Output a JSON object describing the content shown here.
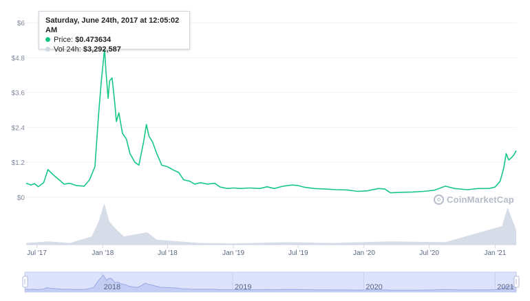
{
  "chart_data": {
    "type": "line",
    "title": "",
    "xlabel": "",
    "ylabel": "",
    "xlim": [
      "2017-06-01",
      "2021-03-01"
    ],
    "ylim": [
      0,
      6
    ],
    "y_ticks": [
      {
        "value": 0,
        "label": "$0"
      },
      {
        "value": 1.2,
        "label": "$1.2"
      },
      {
        "value": 2.4,
        "label": "$2.4"
      },
      {
        "value": 3.6,
        "label": "$3.6"
      },
      {
        "value": 4.8,
        "label": "$4.8"
      },
      {
        "value": 6,
        "label": "$6"
      }
    ],
    "x_ticks": [
      {
        "date": "2017-07-01",
        "label": "Jul '17"
      },
      {
        "date": "2018-01-01",
        "label": "Jan '18"
      },
      {
        "date": "2018-07-01",
        "label": "Jul '18"
      },
      {
        "date": "2019-01-01",
        "label": "Jan '19"
      },
      {
        "date": "2019-07-01",
        "label": "Jul '19"
      },
      {
        "date": "2020-01-01",
        "label": "Jan '20"
      },
      {
        "date": "2020-07-01",
        "label": "Jul '20"
      },
      {
        "date": "2021-01-01",
        "label": "Jan '21"
      }
    ],
    "navigator_ticks": [
      {
        "date": "2018-01-01",
        "label": "2018"
      },
      {
        "date": "2019-01-01",
        "label": "2019"
      },
      {
        "date": "2020-01-01",
        "label": "2020"
      },
      {
        "date": "2021-01-01",
        "label": "2021"
      }
    ],
    "grid": true,
    "series": [
      {
        "color": "#16c784",
        "points": [
          [
            "2017-06-01",
            0.48
          ],
          [
            "2017-06-15",
            0.42
          ],
          [
            "2017-06-24",
            0.47
          ],
          [
            "2017-07-05",
            0.36
          ],
          [
            "2017-07-20",
            0.5
          ],
          [
            "2017-08-01",
            0.95
          ],
          [
            "2017-08-15",
            0.78
          ],
          [
            "2017-09-01",
            0.6
          ],
          [
            "2017-09-15",
            0.45
          ],
          [
            "2017-10-01",
            0.48
          ],
          [
            "2017-10-20",
            0.4
          ],
          [
            "2017-11-10",
            0.38
          ],
          [
            "2017-11-25",
            0.6
          ],
          [
            "2017-12-10",
            1.05
          ],
          [
            "2017-12-20",
            2.8
          ],
          [
            "2017-12-28",
            4.0
          ],
          [
            "2018-01-02",
            4.6
          ],
          [
            "2018-01-06",
            5.1
          ],
          [
            "2018-01-10",
            4.3
          ],
          [
            "2018-01-16",
            3.4
          ],
          [
            "2018-01-20",
            4.0
          ],
          [
            "2018-01-27",
            4.1
          ],
          [
            "2018-02-03",
            3.3
          ],
          [
            "2018-02-08",
            2.6
          ],
          [
            "2018-02-15",
            2.9
          ],
          [
            "2018-02-25",
            2.2
          ],
          [
            "2018-03-08",
            2.0
          ],
          [
            "2018-03-18",
            1.5
          ],
          [
            "2018-04-01",
            1.2
          ],
          [
            "2018-04-12",
            1.1
          ],
          [
            "2018-04-25",
            1.9
          ],
          [
            "2018-05-03",
            2.5
          ],
          [
            "2018-05-10",
            2.1
          ],
          [
            "2018-05-20",
            1.9
          ],
          [
            "2018-06-01",
            1.5
          ],
          [
            "2018-06-15",
            1.1
          ],
          [
            "2018-07-01",
            1.05
          ],
          [
            "2018-07-15",
            0.95
          ],
          [
            "2018-08-01",
            0.85
          ],
          [
            "2018-08-15",
            0.6
          ],
          [
            "2018-09-01",
            0.55
          ],
          [
            "2018-09-15",
            0.45
          ],
          [
            "2018-10-01",
            0.5
          ],
          [
            "2018-10-20",
            0.45
          ],
          [
            "2018-11-10",
            0.48
          ],
          [
            "2018-11-25",
            0.35
          ],
          [
            "2018-12-15",
            0.3
          ],
          [
            "2019-01-01",
            0.32
          ],
          [
            "2019-01-20",
            0.3
          ],
          [
            "2019-02-15",
            0.32
          ],
          [
            "2019-03-15",
            0.3
          ],
          [
            "2019-04-05",
            0.36
          ],
          [
            "2019-04-25",
            0.3
          ],
          [
            "2019-05-20",
            0.38
          ],
          [
            "2019-06-15",
            0.42
          ],
          [
            "2019-07-01",
            0.4
          ],
          [
            "2019-07-20",
            0.34
          ],
          [
            "2019-08-15",
            0.3
          ],
          [
            "2019-09-15",
            0.28
          ],
          [
            "2019-10-15",
            0.26
          ],
          [
            "2019-11-15",
            0.25
          ],
          [
            "2019-12-15",
            0.2
          ],
          [
            "2020-01-10",
            0.22
          ],
          [
            "2020-02-10",
            0.3
          ],
          [
            "2020-02-28",
            0.28
          ],
          [
            "2020-03-15",
            0.15
          ],
          [
            "2020-04-15",
            0.17
          ],
          [
            "2020-05-15",
            0.18
          ],
          [
            "2020-06-15",
            0.2
          ],
          [
            "2020-07-15",
            0.24
          ],
          [
            "2020-08-15",
            0.38
          ],
          [
            "2020-09-10",
            0.3
          ],
          [
            "2020-10-15",
            0.26
          ],
          [
            "2020-11-15",
            0.3
          ],
          [
            "2020-12-15",
            0.3
          ],
          [
            "2021-01-01",
            0.35
          ],
          [
            "2021-01-15",
            0.55
          ],
          [
            "2021-01-25",
            1.0
          ],
          [
            "2021-02-01",
            1.5
          ],
          [
            "2021-02-08",
            1.28
          ],
          [
            "2021-02-15",
            1.35
          ],
          [
            "2021-02-22",
            1.45
          ],
          [
            "2021-03-01",
            1.6
          ]
        ]
      }
    ],
    "volume_color": "#cfd6e4",
    "volume_relative": [
      [
        "2017-06-01",
        0.04
      ],
      [
        "2017-08-01",
        0.08
      ],
      [
        "2017-10-01",
        0.04
      ],
      [
        "2017-12-01",
        0.2
      ],
      [
        "2017-12-20",
        0.55
      ],
      [
        "2018-01-05",
        1.0
      ],
      [
        "2018-01-20",
        0.55
      ],
      [
        "2018-02-10",
        0.35
      ],
      [
        "2018-03-01",
        0.2
      ],
      [
        "2018-05-05",
        0.3
      ],
      [
        "2018-06-01",
        0.12
      ],
      [
        "2018-08-01",
        0.08
      ],
      [
        "2018-10-01",
        0.04
      ],
      [
        "2019-01-01",
        0.03
      ],
      [
        "2019-06-01",
        0.06
      ],
      [
        "2019-10-01",
        0.04
      ],
      [
        "2020-03-15",
        0.08
      ],
      [
        "2020-08-15",
        0.06
      ],
      [
        "2021-01-20",
        0.45
      ],
      [
        "2021-02-05",
        0.9
      ],
      [
        "2021-03-01",
        0.35
      ]
    ]
  },
  "tooltip": {
    "date": "Saturday, June 24th, 2017 at 12:05:02 AM",
    "price_label": "Price:",
    "price_value": "$0.473634",
    "price_color": "#16c784",
    "volume_label": "Vol 24h:",
    "volume_value": "$3,292,587",
    "volume_color": "#cfd6e4"
  },
  "watermark": "CoinMarketCap"
}
